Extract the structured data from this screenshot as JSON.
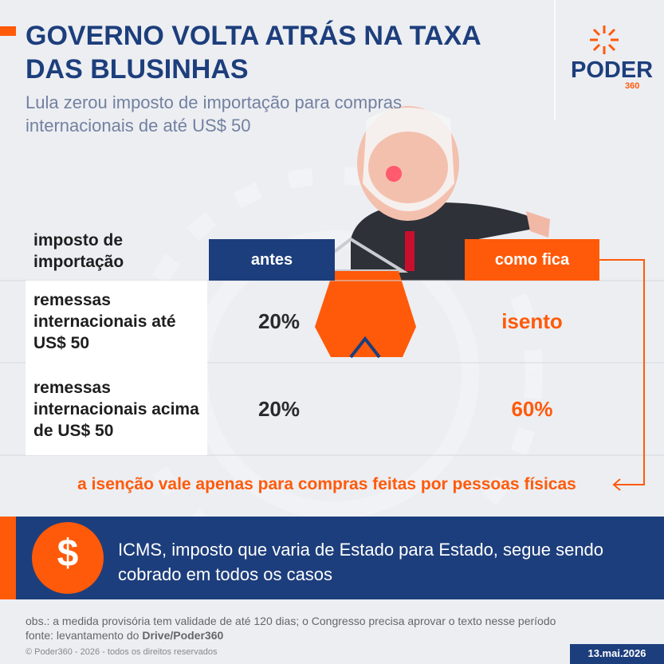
{
  "header": {
    "title": "GOVERNO VOLTA ATRÁS NA TAXA DAS BLUSINHAS",
    "subtitle": "Lula zerou imposto de importação para compras internacionais de até US$ 50",
    "logo": "PODER",
    "logo_sub": "360"
  },
  "table": {
    "columns": [
      "imposto de importação",
      "antes",
      "como fica"
    ],
    "rows": [
      [
        "remessas internacionais até US$ 50",
        "20%",
        "isento"
      ],
      [
        "remessas internacionais acima de US$ 50",
        "20%",
        "60%"
      ]
    ]
  },
  "note": "a isenção vale apenas para compras feitas por pessoas físicas",
  "banner": {
    "icon": "$",
    "text": "ICMS, imposto que varia de Estado para Estado, segue sendo cobrado em todos os casos"
  },
  "footer": {
    "obs": "obs.: a medida provisória tem validade de até 120 dias; o Congresso precisa aprovar o texto nesse período",
    "source_prefix": "fonte: levantamento do",
    "source": "Drive/Poder360",
    "copyright": "© Poder360 - 2026 - todos os direitos reservados",
    "date": "13.mai.2026"
  }
}
